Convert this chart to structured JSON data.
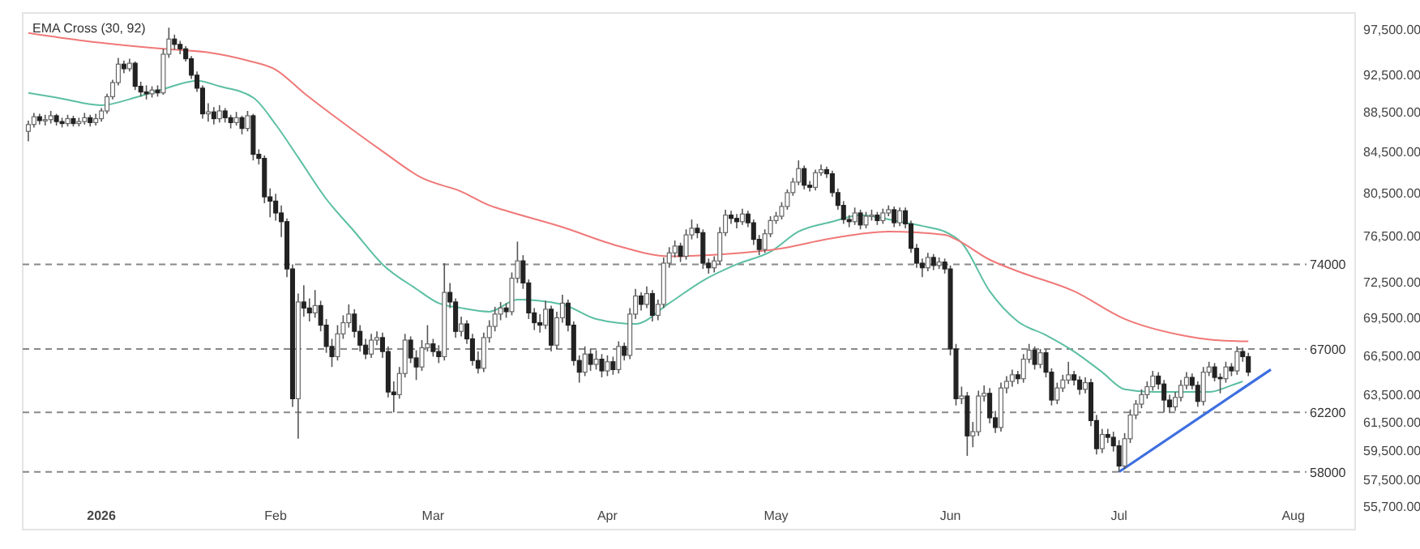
{
  "chart_data": {
    "type": "candlestick",
    "title": "EMA Cross (30, 92)",
    "log": "y",
    "xlim": [
      "2025-12-18",
      "2026-08-12"
    ],
    "xticks": [
      {
        "value": "2026-01-01",
        "label": "2026"
      },
      {
        "value": "2026-02-01",
        "label": "Feb"
      },
      {
        "value": "2026-03-01",
        "label": "Mar"
      },
      {
        "value": "2026-04-01",
        "label": "Apr"
      },
      {
        "value": "2026-05-01",
        "label": "May"
      },
      {
        "value": "2026-06-01",
        "label": "Jun"
      },
      {
        "value": "2026-07-01",
        "label": "Jul"
      },
      {
        "value": "2026-08-01",
        "label": "Aug"
      }
    ],
    "ylim": [
      54200,
      99400
    ],
    "yticks": [
      {
        "value": 97500,
        "label": "97,500.00"
      },
      {
        "value": 92500,
        "label": "92,500.00"
      },
      {
        "value": 88500,
        "label": "88,500.00"
      },
      {
        "value": 84500,
        "label": "84,500.00"
      },
      {
        "value": 80500,
        "label": "80,500.00"
      },
      {
        "value": 76500,
        "label": "76,500.00"
      },
      {
        "value": 72500,
        "label": "72,500.00"
      },
      {
        "value": 69500,
        "label": "69,500.00"
      },
      {
        "value": 66500,
        "label": "66,500.00"
      },
      {
        "value": 63500,
        "label": "63,500.00"
      },
      {
        "value": 61500,
        "label": "61,500.00"
      },
      {
        "value": 59500,
        "label": "59,500.00"
      },
      {
        "value": 57500,
        "label": "57,500.00"
      },
      {
        "value": 55700,
        "label": "55,700.00"
      }
    ],
    "ref_lines": [
      {
        "axis": "y",
        "value": 74000,
        "label": "74000",
        "color": "#888888",
        "line_style": "dashed"
      },
      {
        "axis": "y",
        "value": 67000,
        "label": "67000",
        "color": "#888888",
        "line_style": "dashed"
      },
      {
        "axis": "y",
        "value": 62200,
        "label": "62200",
        "color": "#888888",
        "line_style": "dashed"
      },
      {
        "axis": "y",
        "value": 58000,
        "label": "58000",
        "color": "#888888",
        "line_style": "dashed"
      }
    ],
    "x": [
      "2025-12-19",
      "2025-12-20",
      "2025-12-21",
      "2025-12-22",
      "2025-12-23",
      "2025-12-24",
      "2025-12-25",
      "2025-12-26",
      "2025-12-27",
      "2025-12-28",
      "2025-12-29",
      "2025-12-30",
      "2025-12-31",
      "2026-01-01",
      "2026-01-02",
      "2026-01-03",
      "2026-01-04",
      "2026-01-05",
      "2026-01-06",
      "2026-01-07",
      "2026-01-08",
      "2026-01-09",
      "2026-01-10",
      "2026-01-11",
      "2026-01-12",
      "2026-01-13",
      "2026-01-14",
      "2026-01-15",
      "2026-01-16",
      "2026-01-17",
      "2026-01-18",
      "2026-01-19",
      "2026-01-20",
      "2026-01-21",
      "2026-01-22",
      "2026-01-23",
      "2026-01-24",
      "2026-01-25",
      "2026-01-26",
      "2026-01-27",
      "2026-01-28",
      "2026-01-29",
      "2026-01-30",
      "2026-01-31",
      "2026-02-01",
      "2026-02-02",
      "2026-02-03",
      "2026-02-04",
      "2026-02-05",
      "2026-02-06",
      "2026-02-07",
      "2026-02-08",
      "2026-02-09",
      "2026-02-10",
      "2026-02-11",
      "2026-02-12",
      "2026-02-13",
      "2026-02-14",
      "2026-02-15",
      "2026-02-16",
      "2026-02-17",
      "2026-02-18",
      "2026-02-19",
      "2026-02-20",
      "2026-02-21",
      "2026-02-22",
      "2026-02-23",
      "2026-02-24",
      "2026-02-25",
      "2026-02-26",
      "2026-02-27",
      "2026-02-28",
      "2026-03-01",
      "2026-03-02",
      "2026-03-03",
      "2026-03-04",
      "2026-03-05",
      "2026-03-06",
      "2026-03-07",
      "2026-03-08",
      "2026-03-09",
      "2026-03-10",
      "2026-03-11",
      "2026-03-12",
      "2026-03-13",
      "2026-03-14",
      "2026-03-15",
      "2026-03-16",
      "2026-03-17",
      "2026-03-18",
      "2026-03-19",
      "2026-03-20",
      "2026-03-21",
      "2026-03-22",
      "2026-03-23",
      "2026-03-24",
      "2026-03-25",
      "2026-03-26",
      "2026-03-27",
      "2026-03-28",
      "2026-03-29",
      "2026-03-30",
      "2026-03-31",
      "2026-04-01",
      "2026-04-02",
      "2026-04-03",
      "2026-04-04",
      "2026-04-05",
      "2026-04-06",
      "2026-04-07",
      "2026-04-08",
      "2026-04-09",
      "2026-04-10",
      "2026-04-11",
      "2026-04-12",
      "2026-04-13",
      "2026-04-14",
      "2026-04-15",
      "2026-04-16",
      "2026-04-17",
      "2026-04-18",
      "2026-04-19",
      "2026-04-20",
      "2026-04-21",
      "2026-04-22",
      "2026-04-23",
      "2026-04-24",
      "2026-04-25",
      "2026-04-26",
      "2026-04-27",
      "2026-04-28",
      "2026-04-29",
      "2026-04-30",
      "2026-05-01",
      "2026-05-02",
      "2026-05-03",
      "2026-05-04",
      "2026-05-05",
      "2026-05-06",
      "2026-05-07",
      "2026-05-08",
      "2026-05-09",
      "2026-05-10",
      "2026-05-11",
      "2026-05-12",
      "2026-05-13",
      "2026-05-14",
      "2026-05-15",
      "2026-05-16",
      "2026-05-17",
      "2026-05-18",
      "2026-05-19",
      "2026-05-20",
      "2026-05-21",
      "2026-05-22",
      "2026-05-23",
      "2026-05-24",
      "2026-05-25",
      "2026-05-26",
      "2026-05-27",
      "2026-05-28",
      "2026-05-29",
      "2026-05-30",
      "2026-05-31",
      "2026-06-01",
      "2026-06-02",
      "2026-06-03",
      "2026-06-04",
      "2026-06-05",
      "2026-06-06",
      "2026-06-07",
      "2026-06-08",
      "2026-06-09",
      "2026-06-10",
      "2026-06-11",
      "2026-06-12",
      "2026-06-13",
      "2026-06-14",
      "2026-06-15",
      "2026-06-16",
      "2026-06-17",
      "2026-06-18",
      "2026-06-19",
      "2026-06-20",
      "2026-06-21",
      "2026-06-22",
      "2026-06-23",
      "2026-06-24",
      "2026-06-25",
      "2026-06-26",
      "2026-06-27",
      "2026-06-28",
      "2026-06-29",
      "2026-06-30",
      "2026-07-01",
      "2026-07-02",
      "2026-07-03",
      "2026-07-04",
      "2026-07-05",
      "2026-07-06",
      "2026-07-07",
      "2026-07-08",
      "2026-07-09",
      "2026-07-10",
      "2026-07-11",
      "2026-07-12",
      "2026-07-13",
      "2026-07-14",
      "2026-07-15",
      "2026-07-16",
      "2026-07-17",
      "2026-07-18",
      "2026-07-19",
      "2026-07-20",
      "2026-07-21",
      "2026-07-22",
      "2026-07-23",
      "2026-07-24"
    ],
    "ohlc": [
      [
        86500,
        87600,
        85500,
        87200
      ],
      [
        87200,
        88400,
        86900,
        88000
      ],
      [
        88000,
        88300,
        87200,
        87600
      ],
      [
        87600,
        88200,
        87100,
        87700
      ],
      [
        87700,
        88600,
        87300,
        88100
      ],
      [
        88100,
        88300,
        87100,
        87500
      ],
      [
        87500,
        87900,
        86900,
        87300
      ],
      [
        87300,
        88200,
        87000,
        87800
      ],
      [
        87800,
        88100,
        87000,
        87300
      ],
      [
        87300,
        87900,
        87000,
        87500
      ],
      [
        87500,
        88400,
        87200,
        87900
      ],
      [
        87900,
        88200,
        87000,
        87400
      ],
      [
        87400,
        88300,
        87100,
        87800
      ],
      [
        87800,
        88900,
        87500,
        88600
      ],
      [
        88600,
        90400,
        88300,
        90100
      ],
      [
        90100,
        91900,
        89800,
        91600
      ],
      [
        91600,
        94300,
        91300,
        93600
      ],
      [
        93600,
        94000,
        92600,
        93100
      ],
      [
        93100,
        94200,
        92800,
        93700
      ],
      [
        93700,
        93900,
        90800,
        91200
      ],
      [
        91200,
        91700,
        90100,
        90600
      ],
      [
        90600,
        91300,
        89800,
        90400
      ],
      [
        90400,
        91200,
        90000,
        90800
      ],
      [
        90800,
        91300,
        90100,
        90500
      ],
      [
        90500,
        95300,
        90300,
        94700
      ],
      [
        94700,
        97700,
        94300,
        96400
      ],
      [
        96400,
        96900,
        95200,
        95800
      ],
      [
        95800,
        96200,
        94700,
        95300
      ],
      [
        95300,
        95600,
        93900,
        94200
      ],
      [
        94200,
        94500,
        92000,
        92400
      ],
      [
        92400,
        92800,
        90600,
        91000
      ],
      [
        91000,
        91300,
        87800,
        88300
      ],
      [
        88300,
        89400,
        87500,
        88500
      ],
      [
        88500,
        89000,
        87200,
        87800
      ],
      [
        87800,
        89200,
        87400,
        88600
      ],
      [
        88600,
        88900,
        87400,
        87900
      ],
      [
        87900,
        88200,
        86800,
        87400
      ],
      [
        87400,
        88500,
        87100,
        87900
      ],
      [
        87900,
        88100,
        86200,
        86800
      ],
      [
        86800,
        88600,
        86500,
        88100
      ],
      [
        88100,
        88300,
        83600,
        84200
      ],
      [
        84200,
        84700,
        83200,
        83800
      ],
      [
        83800,
        84100,
        79500,
        80100
      ],
      [
        80100,
        80900,
        78200,
        79700
      ],
      [
        79700,
        80400,
        77900,
        78600
      ],
      [
        78600,
        79300,
        76400,
        77800
      ],
      [
        77800,
        78100,
        72900,
        73600
      ],
      [
        73600,
        74000,
        62600,
        63200
      ],
      [
        63200,
        71500,
        60300,
        70800
      ],
      [
        70800,
        72200,
        69600,
        70300
      ],
      [
        70300,
        71100,
        69200,
        69900
      ],
      [
        69900,
        71800,
        69500,
        70500
      ],
      [
        70500,
        70900,
        68400,
        68900
      ],
      [
        68900,
        69400,
        66700,
        67200
      ],
      [
        67200,
        67800,
        65600,
        66400
      ],
      [
        66400,
        68900,
        66100,
        68200
      ],
      [
        68200,
        69700,
        67800,
        69100
      ],
      [
        69100,
        70600,
        68700,
        69800
      ],
      [
        69800,
        70200,
        67900,
        68400
      ],
      [
        68400,
        68900,
        66800,
        67300
      ],
      [
        67300,
        67800,
        66200,
        66600
      ],
      [
        66600,
        68200,
        66300,
        67700
      ],
      [
        67700,
        68400,
        67300,
        67900
      ],
      [
        67900,
        68300,
        66300,
        66800
      ],
      [
        66800,
        67200,
        63300,
        63700
      ],
      [
        63700,
        64500,
        62200,
        63500
      ],
      [
        63500,
        65600,
        63200,
        65100
      ],
      [
        65100,
        68200,
        64800,
        67700
      ],
      [
        67700,
        68000,
        65900,
        66300
      ],
      [
        66300,
        66900,
        64600,
        65600
      ],
      [
        65600,
        67700,
        65300,
        67100
      ],
      [
        67100,
        68900,
        66800,
        67400
      ],
      [
        67400,
        67800,
        66400,
        66800
      ],
      [
        66800,
        67300,
        65900,
        66400
      ],
      [
        66400,
        74100,
        66100,
        71600
      ],
      [
        71600,
        72400,
        70300,
        70800
      ],
      [
        70800,
        71100,
        67900,
        68400
      ],
      [
        68400,
        69600,
        68000,
        69000
      ],
      [
        69000,
        69300,
        67400,
        67800
      ],
      [
        67800,
        68200,
        65700,
        66100
      ],
      [
        66100,
        66800,
        65100,
        65500
      ],
      [
        65500,
        68300,
        65200,
        67900
      ],
      [
        67900,
        69300,
        67500,
        68800
      ],
      [
        68800,
        70400,
        68400,
        69800
      ],
      [
        69800,
        70800,
        69300,
        70300
      ],
      [
        70300,
        70700,
        69500,
        70000
      ],
      [
        70000,
        73300,
        69700,
        72800
      ],
      [
        72800,
        76000,
        72400,
        74300
      ],
      [
        74300,
        74800,
        71900,
        72400
      ],
      [
        72400,
        72700,
        69400,
        69900
      ],
      [
        69900,
        70300,
        68500,
        69100
      ],
      [
        69100,
        69800,
        68300,
        68900
      ],
      [
        68900,
        70900,
        68600,
        70200
      ],
      [
        70200,
        70500,
        66800,
        67300
      ],
      [
        67300,
        70000,
        67000,
        69500
      ],
      [
        69500,
        71400,
        69100,
        70700
      ],
      [
        70700,
        71000,
        68400,
        68900
      ],
      [
        68900,
        69200,
        65700,
        66100
      ],
      [
        66100,
        66500,
        64400,
        65200
      ],
      [
        65200,
        67200,
        64900,
        66600
      ],
      [
        66600,
        67000,
        65300,
        65800
      ],
      [
        65800,
        66900,
        65400,
        66200
      ],
      [
        66200,
        66600,
        64800,
        65300
      ],
      [
        65300,
        66500,
        64900,
        66000
      ],
      [
        66000,
        66400,
        65000,
        65400
      ],
      [
        65400,
        67600,
        65100,
        67200
      ],
      [
        67200,
        67500,
        66100,
        66500
      ],
      [
        66500,
        70300,
        66200,
        69800
      ],
      [
        69800,
        71900,
        69400,
        71300
      ],
      [
        71300,
        71600,
        70100,
        70600
      ],
      [
        70600,
        72100,
        70300,
        71500
      ],
      [
        71500,
        71800,
        69200,
        69700
      ],
      [
        69700,
        71000,
        69300,
        70600
      ],
      [
        70600,
        74600,
        70300,
        74100
      ],
      [
        74100,
        75500,
        73700,
        75000
      ],
      [
        75000,
        76100,
        74600,
        75600
      ],
      [
        75600,
        75900,
        74200,
        74700
      ],
      [
        74700,
        77100,
        74400,
        76600
      ],
      [
        76600,
        78000,
        76200,
        77200
      ],
      [
        77200,
        77600,
        76300,
        76800
      ],
      [
        76800,
        77100,
        73600,
        74100
      ],
      [
        74100,
        74500,
        73200,
        73700
      ],
      [
        73700,
        74700,
        73300,
        74300
      ],
      [
        74300,
        77300,
        74000,
        76800
      ],
      [
        76800,
        78900,
        76500,
        78400
      ],
      [
        78400,
        78800,
        77600,
        78100
      ],
      [
        78100,
        78500,
        77200,
        77800
      ],
      [
        77800,
        79000,
        77500,
        78500
      ],
      [
        78500,
        78800,
        77300,
        77700
      ],
      [
        77700,
        78000,
        75700,
        76200
      ],
      [
        76200,
        76600,
        74800,
        75300
      ],
      [
        75300,
        77100,
        75000,
        76700
      ],
      [
        76700,
        78300,
        76400,
        77900
      ],
      [
        77900,
        78700,
        77600,
        78300
      ],
      [
        78300,
        79600,
        78000,
        79200
      ],
      [
        79200,
        80800,
        78900,
        80500
      ],
      [
        80500,
        81900,
        80200,
        81500
      ],
      [
        81500,
        83600,
        81200,
        82800
      ],
      [
        82800,
        83100,
        80800,
        81200
      ],
      [
        81200,
        81600,
        80600,
        81000
      ],
      [
        81000,
        82700,
        80700,
        82400
      ],
      [
        82400,
        83200,
        82100,
        82700
      ],
      [
        82700,
        83000,
        81900,
        82300
      ],
      [
        82300,
        82600,
        80100,
        80500
      ],
      [
        80500,
        80900,
        78900,
        79300
      ],
      [
        79300,
        79700,
        77600,
        78000
      ],
      [
        78000,
        78400,
        77300,
        77800
      ],
      [
        77800,
        79100,
        77500,
        78600
      ],
      [
        78600,
        78900,
        77100,
        77500
      ],
      [
        77500,
        78700,
        77200,
        78300
      ],
      [
        78300,
        78900,
        77900,
        78400
      ],
      [
        78400,
        78700,
        77500,
        77900
      ],
      [
        77900,
        79000,
        77600,
        78600
      ],
      [
        78600,
        79300,
        78300,
        78900
      ],
      [
        78900,
        79200,
        77300,
        77700
      ],
      [
        77700,
        79100,
        77400,
        78800
      ],
      [
        78800,
        79100,
        77200,
        77600
      ],
      [
        77600,
        77900,
        75000,
        75400
      ],
      [
        75400,
        75800,
        73700,
        74100
      ],
      [
        74100,
        74500,
        72900,
        73700
      ],
      [
        73700,
        75000,
        73400,
        74600
      ],
      [
        74600,
        74900,
        73500,
        73900
      ],
      [
        73900,
        74600,
        73600,
        74200
      ],
      [
        74200,
        74500,
        73200,
        73600
      ],
      [
        73600,
        73900,
        66500,
        67000
      ],
      [
        67000,
        67400,
        62700,
        63200
      ],
      [
        63200,
        64100,
        62800,
        63400
      ],
      [
        63400,
        63700,
        59100,
        60500
      ],
      [
        60500,
        61500,
        59700,
        60800
      ],
      [
        60800,
        63800,
        60500,
        63400
      ],
      [
        63400,
        64200,
        63000,
        63600
      ],
      [
        63600,
        64000,
        61400,
        61800
      ],
      [
        61800,
        62300,
        60700,
        61100
      ],
      [
        61100,
        64400,
        60800,
        64000
      ],
      [
        64000,
        64900,
        63600,
        64500
      ],
      [
        64500,
        65400,
        64100,
        65000
      ],
      [
        65000,
        65300,
        64300,
        64700
      ],
      [
        64700,
        66600,
        64400,
        66200
      ],
      [
        66200,
        67400,
        65900,
        66900
      ],
      [
        66900,
        67200,
        65400,
        65800
      ],
      [
        65800,
        67000,
        65500,
        66700
      ],
      [
        66700,
        67000,
        64800,
        65200
      ],
      [
        65200,
        65500,
        62700,
        63100
      ],
      [
        63100,
        64400,
        62800,
        64000
      ],
      [
        64000,
        65000,
        63700,
        64600
      ],
      [
        64600,
        66000,
        64300,
        65000
      ],
      [
        65000,
        65300,
        64200,
        64600
      ],
      [
        64600,
        64900,
        63500,
        63900
      ],
      [
        63900,
        64800,
        63600,
        64400
      ],
      [
        64400,
        64700,
        61200,
        61600
      ],
      [
        61600,
        62000,
        59200,
        59600
      ],
      [
        59600,
        61000,
        59300,
        60600
      ],
      [
        60600,
        61000,
        60000,
        60400
      ],
      [
        60400,
        60800,
        59400,
        59800
      ],
      [
        59800,
        60200,
        58000,
        58400
      ],
      [
        58400,
        60700,
        58200,
        60300
      ],
      [
        60300,
        62400,
        60000,
        62000
      ],
      [
        62000,
        63100,
        61700,
        62800
      ],
      [
        62800,
        63900,
        62500,
        63500
      ],
      [
        63500,
        64500,
        63200,
        64100
      ],
      [
        64100,
        65300,
        63800,
        64900
      ],
      [
        64900,
        65200,
        63900,
        64300
      ],
      [
        64300,
        64600,
        62200,
        63100
      ],
      [
        63100,
        63500,
        62200,
        62600
      ],
      [
        62600,
        63700,
        62300,
        63300
      ],
      [
        63300,
        64600,
        63000,
        64200
      ],
      [
        64200,
        65200,
        63900,
        64800
      ],
      [
        64800,
        65100,
        63900,
        64200
      ],
      [
        64200,
        64500,
        62600,
        63000
      ],
      [
        63000,
        65600,
        62700,
        65200
      ],
      [
        65200,
        66000,
        64900,
        65600
      ],
      [
        65600,
        65900,
        64500,
        64800
      ],
      [
        64800,
        65100,
        63600,
        64700
      ],
      [
        64700,
        66000,
        64400,
        65600
      ],
      [
        65600,
        65900,
        64900,
        65300
      ],
      [
        65300,
        67200,
        65000,
        66800
      ],
      [
        66800,
        67100,
        66000,
        66400
      ],
      [
        66400,
        66700,
        64900,
        65200
      ]
    ],
    "series": [
      {
        "type": "line",
        "color": "#5cbfa3",
        "x": [
          "2025-12-19",
          "2025-12-24",
          "2026-01-01",
          "2026-01-07",
          "2026-01-12",
          "2026-01-18",
          "2026-01-22",
          "2026-01-28",
          "2026-02-01",
          "2026-02-05",
          "2026-02-10",
          "2026-02-15",
          "2026-02-20",
          "2026-02-26",
          "2026-03-02",
          "2026-03-06",
          "2026-03-11",
          "2026-03-16",
          "2026-03-24",
          "2026-03-30",
          "2026-04-06",
          "2026-04-12",
          "2026-04-18",
          "2026-04-24",
          "2026-04-30",
          "2026-05-05",
          "2026-05-11",
          "2026-05-16",
          "2026-05-23",
          "2026-05-28",
          "2026-05-31",
          "2026-06-03",
          "2026-06-08",
          "2026-06-13",
          "2026-06-18",
          "2026-06-23",
          "2026-06-28",
          "2026-07-02",
          "2026-07-07",
          "2026-07-12",
          "2026-07-17",
          "2026-07-21",
          "2026-07-23"
        ],
        "values": [
          90500,
          90000,
          89200,
          90000,
          90900,
          91800,
          91200,
          90000,
          87200,
          83900,
          79900,
          76900,
          74000,
          71900,
          70700,
          70300,
          70000,
          71000,
          70600,
          69400,
          69000,
          70700,
          72600,
          74000,
          75100,
          76900,
          77800,
          78400,
          77800,
          77300,
          76900,
          75900,
          71700,
          69200,
          68100,
          66800,
          65200,
          63900,
          63700,
          63700,
          63700,
          64200,
          64500
        ]
      },
      {
        "type": "line",
        "color": "#f07878",
        "x": [
          "2025-12-19",
          "2025-12-29",
          "2026-01-12",
          "2026-01-20",
          "2026-01-27",
          "2026-02-01",
          "2026-02-06",
          "2026-02-12",
          "2026-02-20",
          "2026-02-27",
          "2026-03-06",
          "2026-03-11",
          "2026-03-14",
          "2026-03-24",
          "2026-04-03",
          "2026-04-12",
          "2026-04-22",
          "2026-05-02",
          "2026-05-11",
          "2026-05-21",
          "2026-05-31",
          "2026-06-02",
          "2026-06-08",
          "2026-06-13",
          "2026-06-23",
          "2026-07-02",
          "2026-07-12",
          "2026-07-18",
          "2026-07-24"
        ],
        "values": [
          97100,
          96200,
          95300,
          94900,
          94000,
          93000,
          90500,
          87800,
          84500,
          81900,
          80600,
          79300,
          78800,
          77300,
          75600,
          74700,
          74900,
          75400,
          76300,
          76900,
          76600,
          76200,
          74400,
          73400,
          71700,
          69400,
          68100,
          67700,
          67600
        ]
      },
      {
        "type": "line",
        "color": "#3d6fe0",
        "x": [
          "2026-07-01",
          "2026-07-28"
        ],
        "values": [
          58000,
          65400
        ]
      }
    ]
  }
}
